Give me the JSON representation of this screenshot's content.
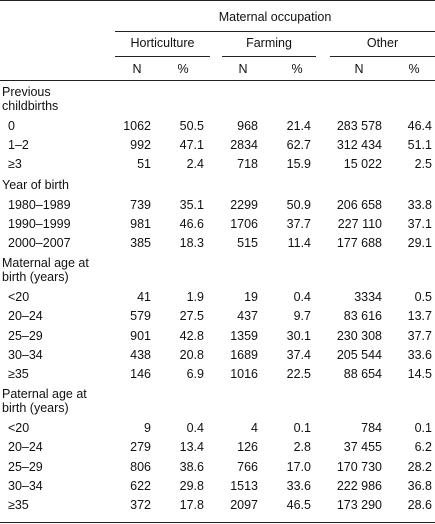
{
  "header": {
    "group_title": "Maternal occupation",
    "groups": [
      "Horticulture",
      "Farming",
      "Other"
    ],
    "n_label": "N",
    "pct_label": "%"
  },
  "sections": [
    {
      "title": [
        "Previous",
        "childbirths"
      ],
      "rows": [
        {
          "label": "0",
          "values": [
            "1062",
            "50.5",
            "968",
            "21.4",
            "283 578",
            "46.4"
          ]
        },
        {
          "label": "1–2",
          "values": [
            "992",
            "47.1",
            "2834",
            "62.7",
            "312 434",
            "51.1"
          ]
        },
        {
          "label": "≥3",
          "values": [
            "51",
            "2.4",
            "718",
            "15.9",
            "15 022",
            "2.5"
          ]
        }
      ]
    },
    {
      "title": [
        "Year of birth"
      ],
      "rows": [
        {
          "label": "1980–1989",
          "values": [
            "739",
            "35.1",
            "2299",
            "50.9",
            "206 658",
            "33.8"
          ]
        },
        {
          "label": "1990–1999",
          "values": [
            "981",
            "46.6",
            "1706",
            "37.7",
            "227 110",
            "37.1"
          ]
        },
        {
          "label": "2000–2007",
          "values": [
            "385",
            "18.3",
            "515",
            "11.4",
            "177 688",
            "29.1"
          ]
        }
      ]
    },
    {
      "title": [
        "Maternal age at",
        "birth (years)"
      ],
      "rows": [
        {
          "label": "<20",
          "values": [
            "41",
            "1.9",
            "19",
            "0.4",
            "3334",
            "0.5"
          ]
        },
        {
          "label": "20–24",
          "values": [
            "579",
            "27.5",
            "437",
            "9.7",
            "83 616",
            "13.7"
          ]
        },
        {
          "label": "25–29",
          "values": [
            "901",
            "42.8",
            "1359",
            "30.1",
            "230 308",
            "37.7"
          ]
        },
        {
          "label": "30–34",
          "values": [
            "438",
            "20.8",
            "1689",
            "37.4",
            "205 544",
            "33.6"
          ]
        },
        {
          "label": "≥35",
          "values": [
            "146",
            "6.9",
            "1016",
            "22.5",
            "88 654",
            "14.5"
          ]
        }
      ]
    },
    {
      "title": [
        "Paternal age at",
        "birth (years)"
      ],
      "rows": [
        {
          "label": "<20",
          "values": [
            "9",
            "0.4",
            "4",
            "0.1",
            "784",
            "0.1"
          ]
        },
        {
          "label": "20–24",
          "values": [
            "279",
            "13.4",
            "126",
            "2.8",
            "37 455",
            "6.2"
          ]
        },
        {
          "label": "25–29",
          "values": [
            "806",
            "38.6",
            "766",
            "17.0",
            "170 730",
            "28.2"
          ]
        },
        {
          "label": "30–34",
          "values": [
            "622",
            "29.8",
            "1513",
            "33.6",
            "222 986",
            "36.8"
          ]
        },
        {
          "label": "≥35",
          "values": [
            "372",
            "17.8",
            "2097",
            "46.5",
            "173 290",
            "28.6"
          ]
        }
      ]
    }
  ]
}
